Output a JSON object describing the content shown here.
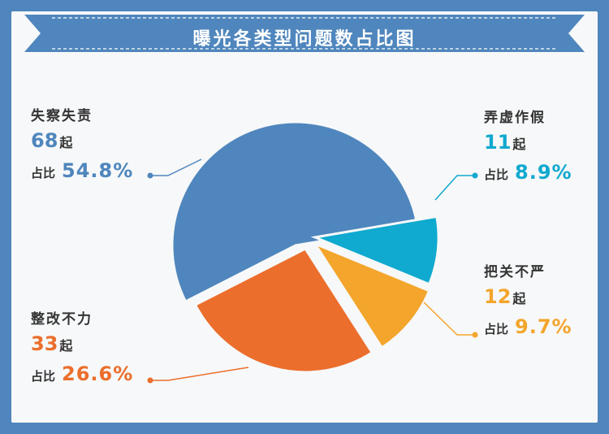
{
  "chart_data": {
    "type": "pie",
    "title": "曝光各类型问题数占比图",
    "slices": [
      {
        "name": "失察失责",
        "count": 68,
        "count_text": "68",
        "percent": 54.8,
        "percent_text": "54.8%",
        "color": "#4f86bd"
      },
      {
        "name": "弄虚作假",
        "count": 11,
        "count_text": "11",
        "percent": 8.9,
        "percent_text": "8.9%",
        "color": "#10a9cf"
      },
      {
        "name": "把关不严",
        "count": 12,
        "count_text": "12",
        "percent": 9.7,
        "percent_text": "9.7%",
        "color": "#f3a52c"
      },
      {
        "name": "整改不力",
        "count": 33,
        "count_text": "33",
        "percent": 26.6,
        "percent_text": "26.6%",
        "color": "#eb6e2c"
      }
    ],
    "unit_label": "起",
    "ratio_label": "占比",
    "legend": "none"
  }
}
